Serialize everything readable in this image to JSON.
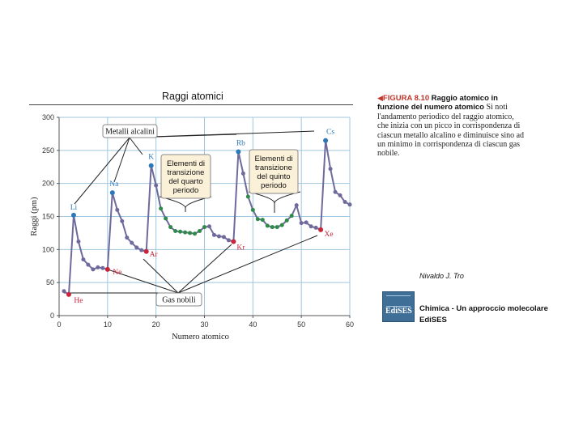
{
  "chart_data": {
    "type": "line",
    "title": "Raggi atomici",
    "xlabel": "Numero atomico",
    "ylabel": "Raggi (pm)",
    "xlim": [
      0,
      60
    ],
    "ylim": [
      0,
      300
    ],
    "xticks": [
      "0",
      "10",
      "20",
      "30",
      "40",
      "50",
      "60"
    ],
    "yticks": [
      "0",
      "50",
      "100",
      "150",
      "200",
      "250",
      "300"
    ],
    "grid": true,
    "series": [
      {
        "values": [
          [
            1,
            37
          ],
          [
            2,
            32
          ],
          [
            3,
            152
          ],
          [
            4,
            112
          ],
          [
            5,
            85
          ],
          [
            6,
            77
          ],
          [
            7,
            70
          ],
          [
            8,
            73
          ],
          [
            9,
            72
          ],
          [
            10,
            70
          ],
          [
            11,
            186
          ],
          [
            12,
            160
          ],
          [
            13,
            143
          ],
          [
            14,
            118
          ],
          [
            15,
            110
          ],
          [
            16,
            103
          ],
          [
            17,
            99
          ],
          [
            18,
            97
          ],
          [
            19,
            227
          ],
          [
            20,
            197
          ],
          [
            21,
            162
          ],
          [
            22,
            147
          ],
          [
            23,
            134
          ],
          [
            24,
            128
          ],
          [
            25,
            127
          ],
          [
            26,
            126
          ],
          [
            27,
            125
          ],
          [
            28,
            124
          ],
          [
            29,
            128
          ],
          [
            30,
            134
          ],
          [
            31,
            135
          ],
          [
            32,
            122
          ],
          [
            33,
            120
          ],
          [
            34,
            119
          ],
          [
            35,
            114
          ],
          [
            36,
            112
          ],
          [
            37,
            248
          ],
          [
            38,
            215
          ],
          [
            39,
            180
          ],
          [
            40,
            160
          ],
          [
            41,
            146
          ],
          [
            42,
            145
          ],
          [
            43,
            136
          ],
          [
            44,
            134
          ],
          [
            45,
            134
          ],
          [
            46,
            137
          ],
          [
            47,
            144
          ],
          [
            48,
            151
          ],
          [
            49,
            167
          ],
          [
            50,
            140
          ],
          [
            51,
            141
          ],
          [
            52,
            135
          ],
          [
            53,
            133
          ],
          [
            54,
            130
          ],
          [
            55,
            265
          ],
          [
            56,
            222
          ],
          [
            57,
            187
          ],
          [
            58,
            182
          ],
          [
            59,
            172
          ],
          [
            60,
            168
          ]
        ]
      }
    ],
    "highlight_groups": {
      "alkali": {
        "color": "#2e78b8",
        "x": [
          3,
          11,
          19,
          37,
          55
        ]
      },
      "noble": {
        "color": "#c8243a",
        "x": [
          2,
          10,
          18,
          36,
          54
        ]
      },
      "transition": {
        "color": "#2f8a4a",
        "x": [
          21,
          22,
          23,
          24,
          25,
          26,
          27,
          28,
          29,
          30,
          39,
          40,
          41,
          42,
          43,
          44,
          45,
          46,
          47,
          48
        ]
      }
    },
    "point_labels": [
      {
        "x": 2,
        "text": "He",
        "color": "#c8243a"
      },
      {
        "x": 3,
        "text": "Li",
        "color": "#2e78b8"
      },
      {
        "x": 10,
        "text": "Ne",
        "color": "#c8243a"
      },
      {
        "x": 11,
        "text": "Na",
        "color": "#2e78b8"
      },
      {
        "x": 18,
        "text": "Ar",
        "color": "#c8243a"
      },
      {
        "x": 19,
        "text": "K",
        "color": "#2e78b8"
      },
      {
        "x": 36,
        "text": "Kr",
        "color": "#c8243a"
      },
      {
        "x": 37,
        "text": "Rb",
        "color": "#2e78b8"
      },
      {
        "x": 54,
        "text": "Xe",
        "color": "#c8243a"
      },
      {
        "x": 55,
        "text": "Cs",
        "color": "#2e78b8"
      }
    ],
    "annotations": [
      {
        "id": "metalli",
        "text": [
          "Metalli alcalini"
        ],
        "points_to_x": [
          3,
          11,
          19,
          37,
          55
        ]
      },
      {
        "id": "quarto",
        "text": [
          "Elementi di",
          "transizione",
          "del quarto",
          "periodo"
        ],
        "points_to_x": [
          25
        ]
      },
      {
        "id": "quinto",
        "text": [
          "Elementi di",
          "transizione",
          "del quinto",
          "periodo"
        ],
        "points_to_x": [
          43
        ]
      },
      {
        "id": "gas",
        "text": [
          "Gas nobili"
        ],
        "points_to_x": [
          2,
          10,
          18,
          36,
          54
        ]
      }
    ],
    "colors": {
      "line": "#6e6a9c",
      "grid": "#9fc6de",
      "axis": "#555555",
      "box_fill": "#fbf1d8",
      "box_stroke": "#888888"
    }
  },
  "caption": {
    "label": "FIGURA 8.10",
    "title": "Raggio atomico in funzione del numero atomico",
    "text": "Si noti l'andamento periodico del raggio atomico, che inizia con un picco in corrispondenza di ciascun metallo alcalino e diminuisce sino ad un minimo in corrispondenza di ciascun gas nobile."
  },
  "credit": {
    "author": "Nivaldo J. Tro",
    "book": "Chimica - Un approccio molecolare",
    "publisher": "EdiSES",
    "logo_text": "EdiSES"
  }
}
